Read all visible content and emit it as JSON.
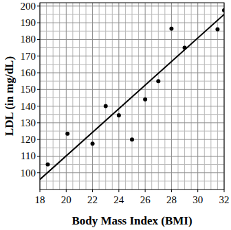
{
  "chart_data": {
    "type": "scatter",
    "x_label": "Body Mass Index (BMI)",
    "y_label": "LDL (in mg/dL)",
    "xlim": [
      18,
      32
    ],
    "ylim": [
      90,
      202
    ],
    "xticks": [
      18,
      20,
      22,
      24,
      26,
      28,
      30,
      32
    ],
    "yticks": [
      100,
      110,
      120,
      130,
      140,
      150,
      160,
      170,
      180,
      190,
      200
    ],
    "grid": true,
    "series": [
      {
        "type": "scatter",
        "marker": "circle",
        "color": "#000000",
        "x": [
          18.6,
          20.1,
          22,
          23,
          24,
          25,
          26,
          27,
          28,
          29,
          31.5,
          32
        ],
        "values": [
          105,
          123.5,
          117.5,
          140,
          134.5,
          120,
          144,
          155,
          186.5,
          175,
          186,
          197.5
        ]
      },
      {
        "type": "line",
        "line_style": "solid",
        "color": "#000000",
        "x": [
          18,
          32
        ],
        "values": [
          96,
          195
        ]
      }
    ]
  }
}
